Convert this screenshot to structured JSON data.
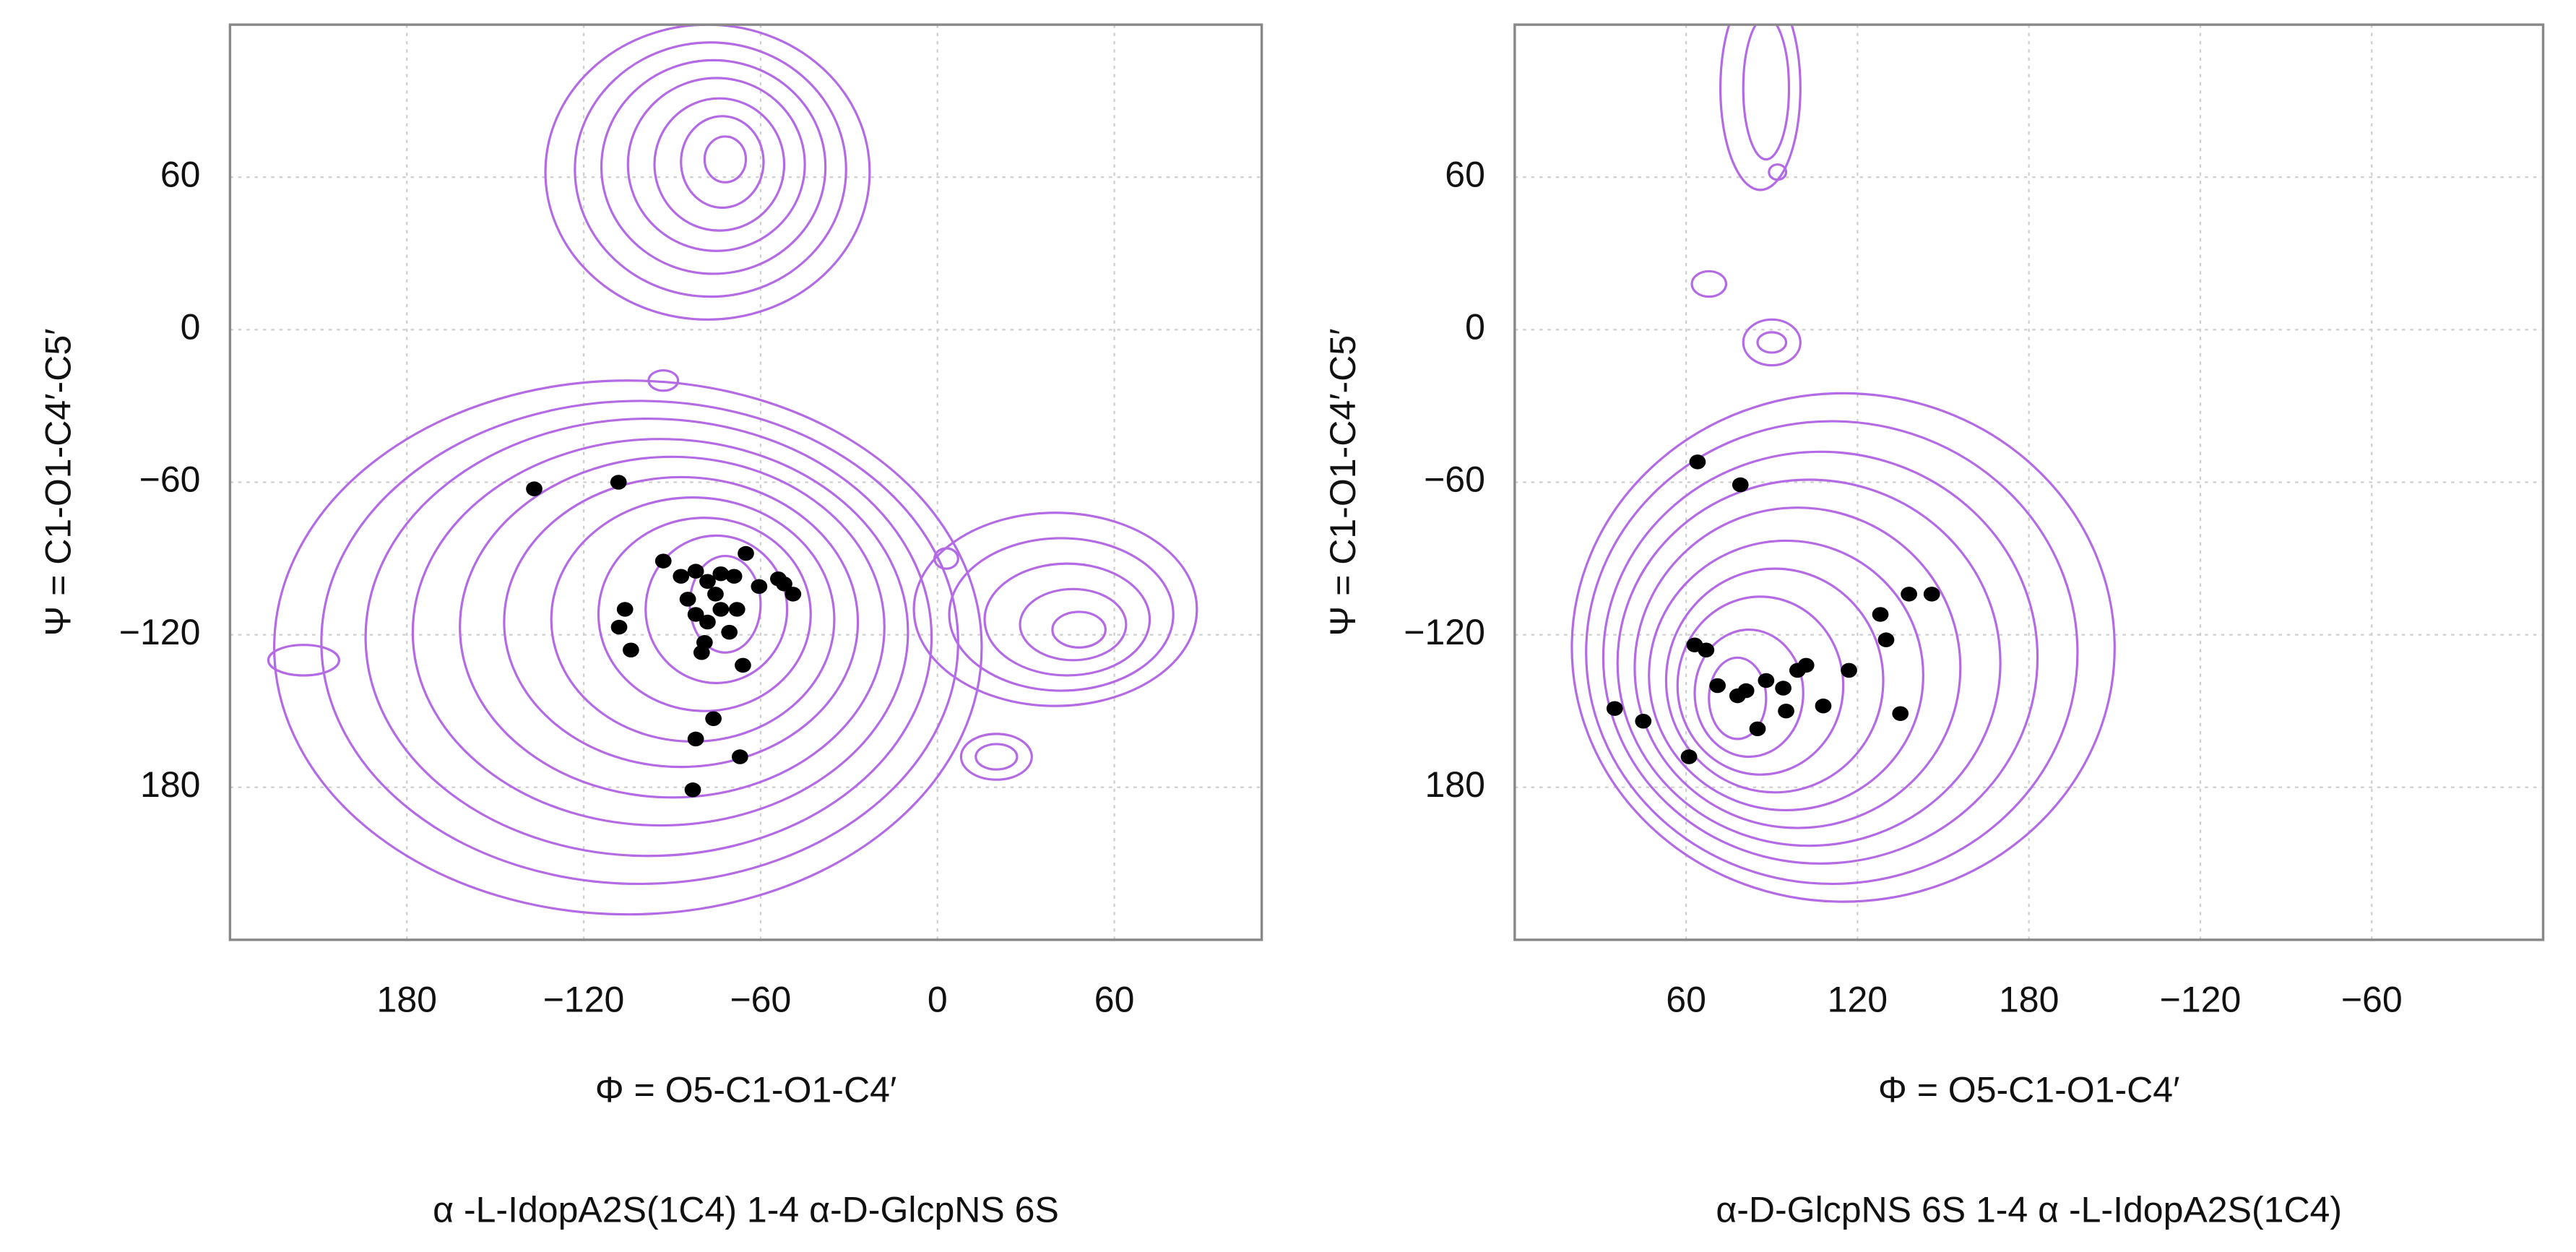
{
  "chart_data": [
    {
      "type": "scatter",
      "xlabel": "Φ = O5-C1-O1-C4′",
      "ylabel": "Ψ = C1-O1-C4′-C5′",
      "caption": "α -L-IdopA2S(1C4) 1-4 α-D-GlcpNS 6S",
      "xlim": [
        -240,
        110
      ],
      "ylim": [
        -240,
        120
      ],
      "xticks": [
        {
          "value": -180,
          "label": "180"
        },
        {
          "value": -120,
          "label": "−120"
        },
        {
          "value": -60,
          "label": "−60"
        },
        0,
        60
      ],
      "yticks": [
        60,
        0,
        {
          "value": -60,
          "label": "−60"
        },
        {
          "value": -120,
          "label": "−120"
        },
        {
          "value": -180,
          "label": "180"
        }
      ],
      "grid": true,
      "color": "#000000",
      "contour_color": "#b46ae4",
      "x": [
        -136.8,
        -108.2,
        -65,
        -93,
        -87,
        -82,
        -78,
        -73.5,
        -69,
        -75.3,
        -84.7,
        -82,
        -78,
        -73.5,
        -68,
        -60.5,
        -54,
        -49,
        -52,
        -79,
        -80,
        -106,
        -108,
        -104,
        -66,
        -76,
        -82,
        -67,
        -83,
        -70.6
      ],
      "y": [
        -62.6,
        -60,
        -88,
        -91,
        -97,
        -95,
        -99,
        -96,
        -97,
        -104,
        -106,
        -112,
        -115,
        -110,
        -110,
        -101,
        -98,
        -104,
        -100,
        -123,
        -127,
        -110,
        -117,
        -126,
        -132,
        -153,
        -161,
        -168,
        -181,
        -119
      ],
      "contours": [
        [
          -105,
          -125,
          120,
          105
        ],
        [
          -101,
          -123,
          108,
          95
        ],
        [
          -98,
          -121,
          96,
          86
        ],
        [
          -94,
          -119,
          84,
          76
        ],
        [
          -90,
          -117,
          72,
          67
        ],
        [
          -87,
          -115,
          60,
          57
        ],
        [
          -83,
          -114,
          48,
          48
        ],
        [
          -79,
          -112,
          36,
          38
        ],
        [
          -75,
          -110,
          24,
          29
        ],
        [
          -72,
          -108,
          12,
          19
        ],
        [
          -78,
          62,
          55,
          58
        ],
        [
          -77,
          63,
          46,
          50
        ],
        [
          -76,
          64,
          38,
          42
        ],
        [
          -75,
          65,
          30,
          34
        ],
        [
          -74,
          65,
          22,
          26
        ],
        [
          -73,
          66,
          14,
          18
        ],
        [
          -72,
          67,
          7,
          9
        ],
        [
          40,
          -110,
          48,
          38
        ],
        [
          42,
          -112,
          38,
          30
        ],
        [
          44,
          -114,
          28,
          22
        ],
        [
          46,
          -116,
          18,
          14
        ],
        [
          48,
          -118,
          9,
          7
        ],
        [
          -93,
          -20,
          5,
          4
        ],
        [
          20,
          -168,
          12,
          9
        ],
        [
          20,
          -168,
          7,
          5
        ],
        [
          3,
          -90,
          4,
          4
        ],
        [
          -215,
          -130,
          12,
          6
        ]
      ]
    },
    {
      "type": "scatter",
      "xlabel": "Φ = O5-C1-O1-C4′",
      "ylabel": "Ψ = C1-O1-C4′-C5′",
      "caption": "α-D-GlcpNS 6S 1-4 α -L-IdopA2S(1C4)",
      "xlim": [
        0,
        360
      ],
      "ylim": [
        -240,
        120
      ],
      "xticks": [
        60,
        120,
        180,
        {
          "value": 240,
          "label": "−120"
        },
        {
          "value": 300,
          "label": "−60"
        }
      ],
      "yticks": [
        60,
        0,
        {
          "value": -60,
          "label": "−60"
        },
        {
          "value": -120,
          "label": "−120"
        },
        {
          "value": -180,
          "label": "180"
        }
      ],
      "grid": true,
      "color": "#000000",
      "contour_color": "#b46ae4",
      "x": [
        64,
        79,
        35,
        45,
        61,
        63,
        67,
        71,
        78,
        81,
        88,
        94,
        85,
        95,
        99,
        102,
        108,
        117,
        128,
        130,
        138,
        146,
        135
      ],
      "y": [
        -52,
        -61,
        -149,
        -154,
        -168,
        -124,
        -126,
        -140,
        -144,
        -142,
        -138,
        -141,
        -157,
        -150,
        -134,
        -132,
        -148,
        -134,
        -112,
        -122,
        -104,
        -104,
        -151
      ],
      "contours": [
        [
          115,
          -125,
          95,
          100
        ],
        [
          111,
          -127,
          86,
          91
        ],
        [
          107,
          -129,
          76,
          81
        ],
        [
          103,
          -131,
          67,
          72
        ],
        [
          99,
          -133,
          57,
          63
        ],
        [
          95,
          -136,
          48,
          53
        ],
        [
          91,
          -138,
          38,
          44
        ],
        [
          86,
          -140,
          29,
          35
        ],
        [
          82,
          -143,
          19,
          25
        ],
        [
          78,
          -145,
          10,
          16
        ],
        [
          86,
          95,
          14,
          40
        ],
        [
          88,
          95,
          8,
          28
        ],
        [
          92,
          62,
          3,
          3
        ],
        [
          68,
          18,
          6,
          5
        ],
        [
          90,
          -5,
          10,
          9
        ],
        [
          90,
          -5,
          5,
          4
        ]
      ]
    }
  ]
}
